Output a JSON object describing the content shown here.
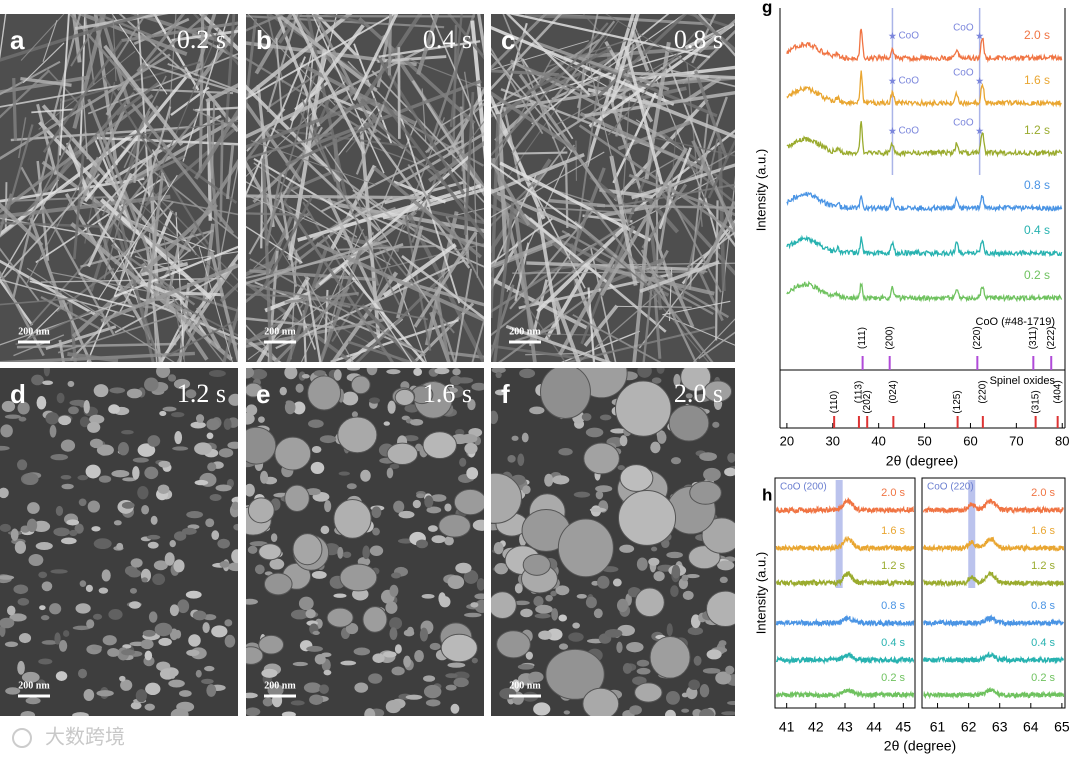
{
  "panels": [
    {
      "label": "a",
      "time": "0.2 s",
      "scale_bar": "200 nm",
      "morphology": "wires"
    },
    {
      "label": "b",
      "time": "0.4 s",
      "scale_bar": "200 nm",
      "morphology": "wires"
    },
    {
      "label": "c",
      "time": "0.8 s",
      "scale_bar": "200 nm",
      "morphology": "wires"
    },
    {
      "label": "d",
      "time": "1.2 s",
      "scale_bar": "200 nm",
      "morphology": "particles"
    },
    {
      "label": "e",
      "time": "1.6 s",
      "scale_bar": "200 nm",
      "morphology": "particles"
    },
    {
      "label": "f",
      "time": "2.0 s",
      "scale_bar": "200 nm",
      "morphology": "particles"
    }
  ],
  "xrd_g": {
    "label": "g",
    "ylabel": "Intensity (a.u.)",
    "xlabel": "2θ (degree)",
    "xlim": [
      18.5,
      80.6
    ],
    "xticks": [
      20,
      30,
      40,
      50,
      60,
      70,
      80
    ],
    "series": [
      {
        "name": "2.0 s",
        "color": "#f07443"
      },
      {
        "name": "1.6 s",
        "color": "#e9a631"
      },
      {
        "name": "1.2 s",
        "color": "#9aab2e"
      },
      {
        "name": "0.8 s",
        "color": "#4a94e4"
      },
      {
        "name": "0.4 s",
        "color": "#27b2b0"
      },
      {
        "name": "0.2 s",
        "color": "#6fc25f"
      }
    ],
    "coo_label": "CoO",
    "coo_ref": {
      "name": "CoO (#48-1719)",
      "color": "#b04ad8",
      "peaks": [
        {
          "hkl": "(111)",
          "two_theta": 36.5
        },
        {
          "hkl": "(200)",
          "two_theta": 42.4
        },
        {
          "hkl": "(220)",
          "two_theta": 61.5
        },
        {
          "hkl": "(311)",
          "two_theta": 73.7
        },
        {
          "hkl": "(222)",
          "two_theta": 77.6
        }
      ]
    },
    "spinel_ref": {
      "name": "Spinel oxides",
      "color": "#d33",
      "peaks": [
        {
          "hkl": "(110)",
          "two_theta": 30.3
        },
        {
          "hkl": "(113)",
          "two_theta": 35.7
        },
        {
          "hkl": "(202)",
          "two_theta": 37.5
        },
        {
          "hkl": "(024)",
          "two_theta": 43.2
        },
        {
          "hkl": "(125)",
          "two_theta": 57.2
        },
        {
          "hkl": "(220)",
          "two_theta": 62.7
        },
        {
          "hkl": "(315)",
          "two_theta": 74.2
        },
        {
          "hkl": "(404)",
          "two_theta": 79
        }
      ]
    }
  },
  "xrd_h": {
    "label": "h",
    "ylabel": "Intensity (a.u.)",
    "xlabel": "2θ (degree)",
    "panels": [
      {
        "title": "CoO (200)",
        "xlim": [
          40.6,
          45.4
        ],
        "xticks": [
          41,
          42,
          43,
          44,
          45
        ]
      },
      {
        "title": "CoO (220)",
        "xlim": [
          60.5,
          65.1
        ],
        "xticks": [
          61,
          62,
          63,
          64,
          65
        ]
      }
    ],
    "series": [
      {
        "name": "2.0 s",
        "color": "#f07443"
      },
      {
        "name": "1.6 s",
        "color": "#e9a631"
      },
      {
        "name": "1.2 s",
        "color": "#9aab2e"
      },
      {
        "name": "0.8 s",
        "color": "#4a94e4"
      },
      {
        "name": "0.4 s",
        "color": "#27b2b0"
      },
      {
        "name": "0.2 s",
        "color": "#6fc25f"
      }
    ]
  },
  "watermark": "大数跨境"
}
